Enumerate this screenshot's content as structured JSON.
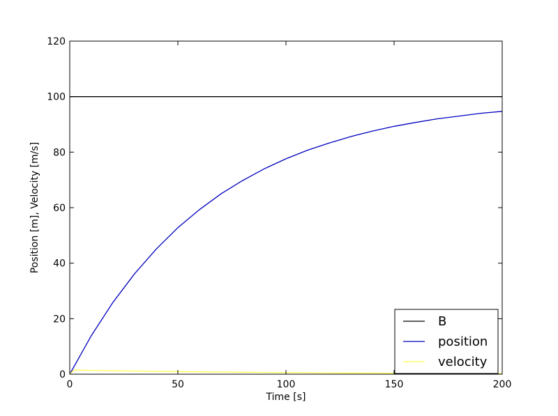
{
  "chart_data": {
    "type": "line",
    "xlabel": "Time [s]",
    "ylabel": "Position [m], Velocity [m/s]",
    "xlim": [
      0,
      200
    ],
    "ylim": [
      0,
      120
    ],
    "xticks": [
      "0",
      "50",
      "100",
      "150",
      "200"
    ],
    "yticks": [
      "0",
      "20",
      "40",
      "60",
      "80",
      "100",
      "120"
    ],
    "grid": false,
    "legend": "lower-right",
    "series": [
      {
        "name": "B",
        "color": "#000000",
        "x": [
          0,
          200
        ],
        "y": [
          100,
          100
        ]
      },
      {
        "name": "position",
        "color": "#0000bf",
        "x": [
          0,
          10,
          20,
          30,
          40,
          50,
          60,
          70,
          80,
          90,
          100,
          110,
          120,
          130,
          140,
          150,
          160,
          170,
          180,
          190,
          200
        ],
        "y": [
          0,
          13.9,
          25.9,
          36.2,
          45.1,
          52.8,
          59.3,
          65.0,
          69.8,
          74.0,
          77.6,
          80.7,
          83.3,
          85.6,
          87.6,
          89.3,
          90.7,
          92.0,
          93.0,
          94.0,
          94.7
        ]
      },
      {
        "name": "velocity",
        "color": "#ffff4d",
        "x": [
          0,
          2,
          10,
          20,
          30,
          40,
          50,
          60,
          70,
          80,
          90,
          100,
          110,
          120,
          130,
          140,
          150,
          160,
          170,
          180,
          190,
          200
        ],
        "y": [
          0,
          1.5,
          1.39,
          1.26,
          1.14,
          1.04,
          0.94,
          0.85,
          0.77,
          0.7,
          0.63,
          0.57,
          0.52,
          0.47,
          0.43,
          0.39,
          0.35,
          0.32,
          0.29,
          0.26,
          0.24,
          0.21
        ]
      }
    ]
  }
}
